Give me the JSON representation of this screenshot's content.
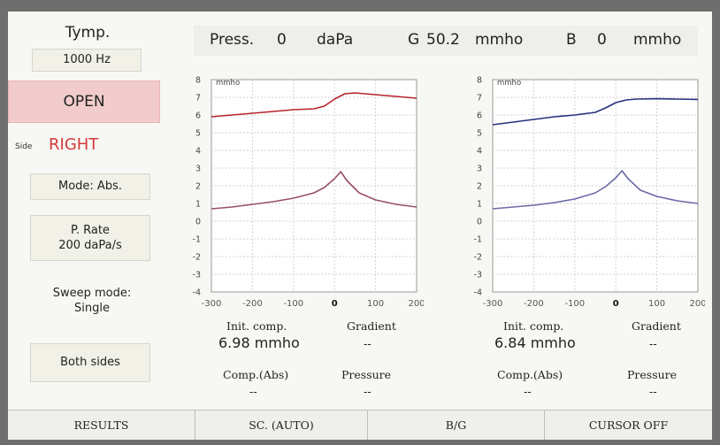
{
  "left_panel": {
    "tymp_label": "Tymp.",
    "frequency": "1000 Hz",
    "status": "OPEN",
    "side_label": "Side",
    "side_value": "RIGHT",
    "mode": "Mode: Abs.",
    "p_rate_label": "P. Rate",
    "p_rate_value": "200 daPa/s",
    "sweep_label": "Sweep mode:",
    "sweep_value": "Single",
    "both_sides": "Both sides"
  },
  "readout": {
    "press_label": "Press.",
    "press_value": "0",
    "press_unit": "daPa",
    "g_label": "G",
    "g_value": "50.2",
    "g_unit": "mmho",
    "b_label": "B",
    "b_value": "0",
    "b_unit": "mmho"
  },
  "left_info": {
    "init_comp_label": "Init. comp.",
    "init_comp_value": "6.98 mmho",
    "gradient_label": "Gradient",
    "gradient_value": "--",
    "comp_abs_label": "Comp.(Abs)",
    "comp_abs_value": "--",
    "pressure_label": "Pressure",
    "pressure_value": "--"
  },
  "right_info": {
    "init_comp_label": "Init. comp.",
    "init_comp_value": "6.84 mmho",
    "gradient_label": "Gradient",
    "gradient_value": "--",
    "comp_abs_label": "Comp.(Abs)",
    "comp_abs_value": "--",
    "pressure_label": "Pressure",
    "pressure_value": "--"
  },
  "bottom_bar": {
    "results": "RESULTS",
    "scale": "SC. (AUTO)",
    "bg": "B/G",
    "cursor": "CURSOR OFF"
  },
  "colors": {
    "right_ear": "#b8242c",
    "left_ear": "#26307e",
    "trace_lower_right": "#9a4f6a",
    "trace_lower_left": "#6a6aa6"
  },
  "chart_data": [
    {
      "type": "line",
      "ylabel": "mmho",
      "xlim": [
        -300,
        200
      ],
      "ylim": [
        -4,
        8
      ],
      "x_ticks": [
        -300,
        -200,
        -100,
        0,
        100,
        200
      ],
      "y_ticks": [
        8,
        7,
        6,
        5,
        4,
        3,
        2,
        1,
        0,
        -1,
        -2,
        -3,
        -4
      ],
      "grid": true,
      "series": [
        {
          "color": "#b8242c",
          "x": [
            -300,
            -250,
            -200,
            -150,
            -100,
            -50,
            -25,
            0,
            25,
            50,
            100,
            150,
            200
          ],
          "y": [
            5.9,
            6.0,
            6.1,
            6.2,
            6.3,
            6.35,
            6.5,
            6.9,
            7.2,
            7.25,
            7.15,
            7.05,
            6.95
          ]
        },
        {
          "color": "#9a4f6a",
          "x": [
            -300,
            -250,
            -200,
            -150,
            -100,
            -50,
            -25,
            0,
            15,
            30,
            60,
            100,
            150,
            200
          ],
          "y": [
            0.7,
            0.8,
            0.95,
            1.1,
            1.3,
            1.6,
            1.9,
            2.4,
            2.8,
            2.3,
            1.6,
            1.2,
            0.95,
            0.8
          ]
        }
      ]
    },
    {
      "type": "line",
      "ylabel": "mmho",
      "xlim": [
        -300,
        200
      ],
      "ylim": [
        -4,
        8
      ],
      "x_ticks": [
        -300,
        -200,
        -100,
        0,
        100,
        200
      ],
      "y_ticks": [
        8,
        7,
        6,
        5,
        4,
        3,
        2,
        1,
        0,
        -1,
        -2,
        -3,
        -4
      ],
      "grid": true,
      "series": [
        {
          "color": "#26307e",
          "x": [
            -300,
            -250,
            -200,
            -150,
            -100,
            -50,
            -25,
            0,
            25,
            50,
            100,
            150,
            200
          ],
          "y": [
            5.45,
            5.6,
            5.75,
            5.9,
            6.0,
            6.15,
            6.4,
            6.7,
            6.85,
            6.9,
            6.92,
            6.9,
            6.88
          ]
        },
        {
          "color": "#6a6aa6",
          "x": [
            -300,
            -250,
            -200,
            -150,
            -100,
            -50,
            -25,
            0,
            15,
            30,
            60,
            100,
            150,
            200
          ],
          "y": [
            0.7,
            0.8,
            0.9,
            1.05,
            1.25,
            1.6,
            1.95,
            2.45,
            2.85,
            2.4,
            1.75,
            1.4,
            1.15,
            1.0
          ]
        }
      ]
    }
  ]
}
